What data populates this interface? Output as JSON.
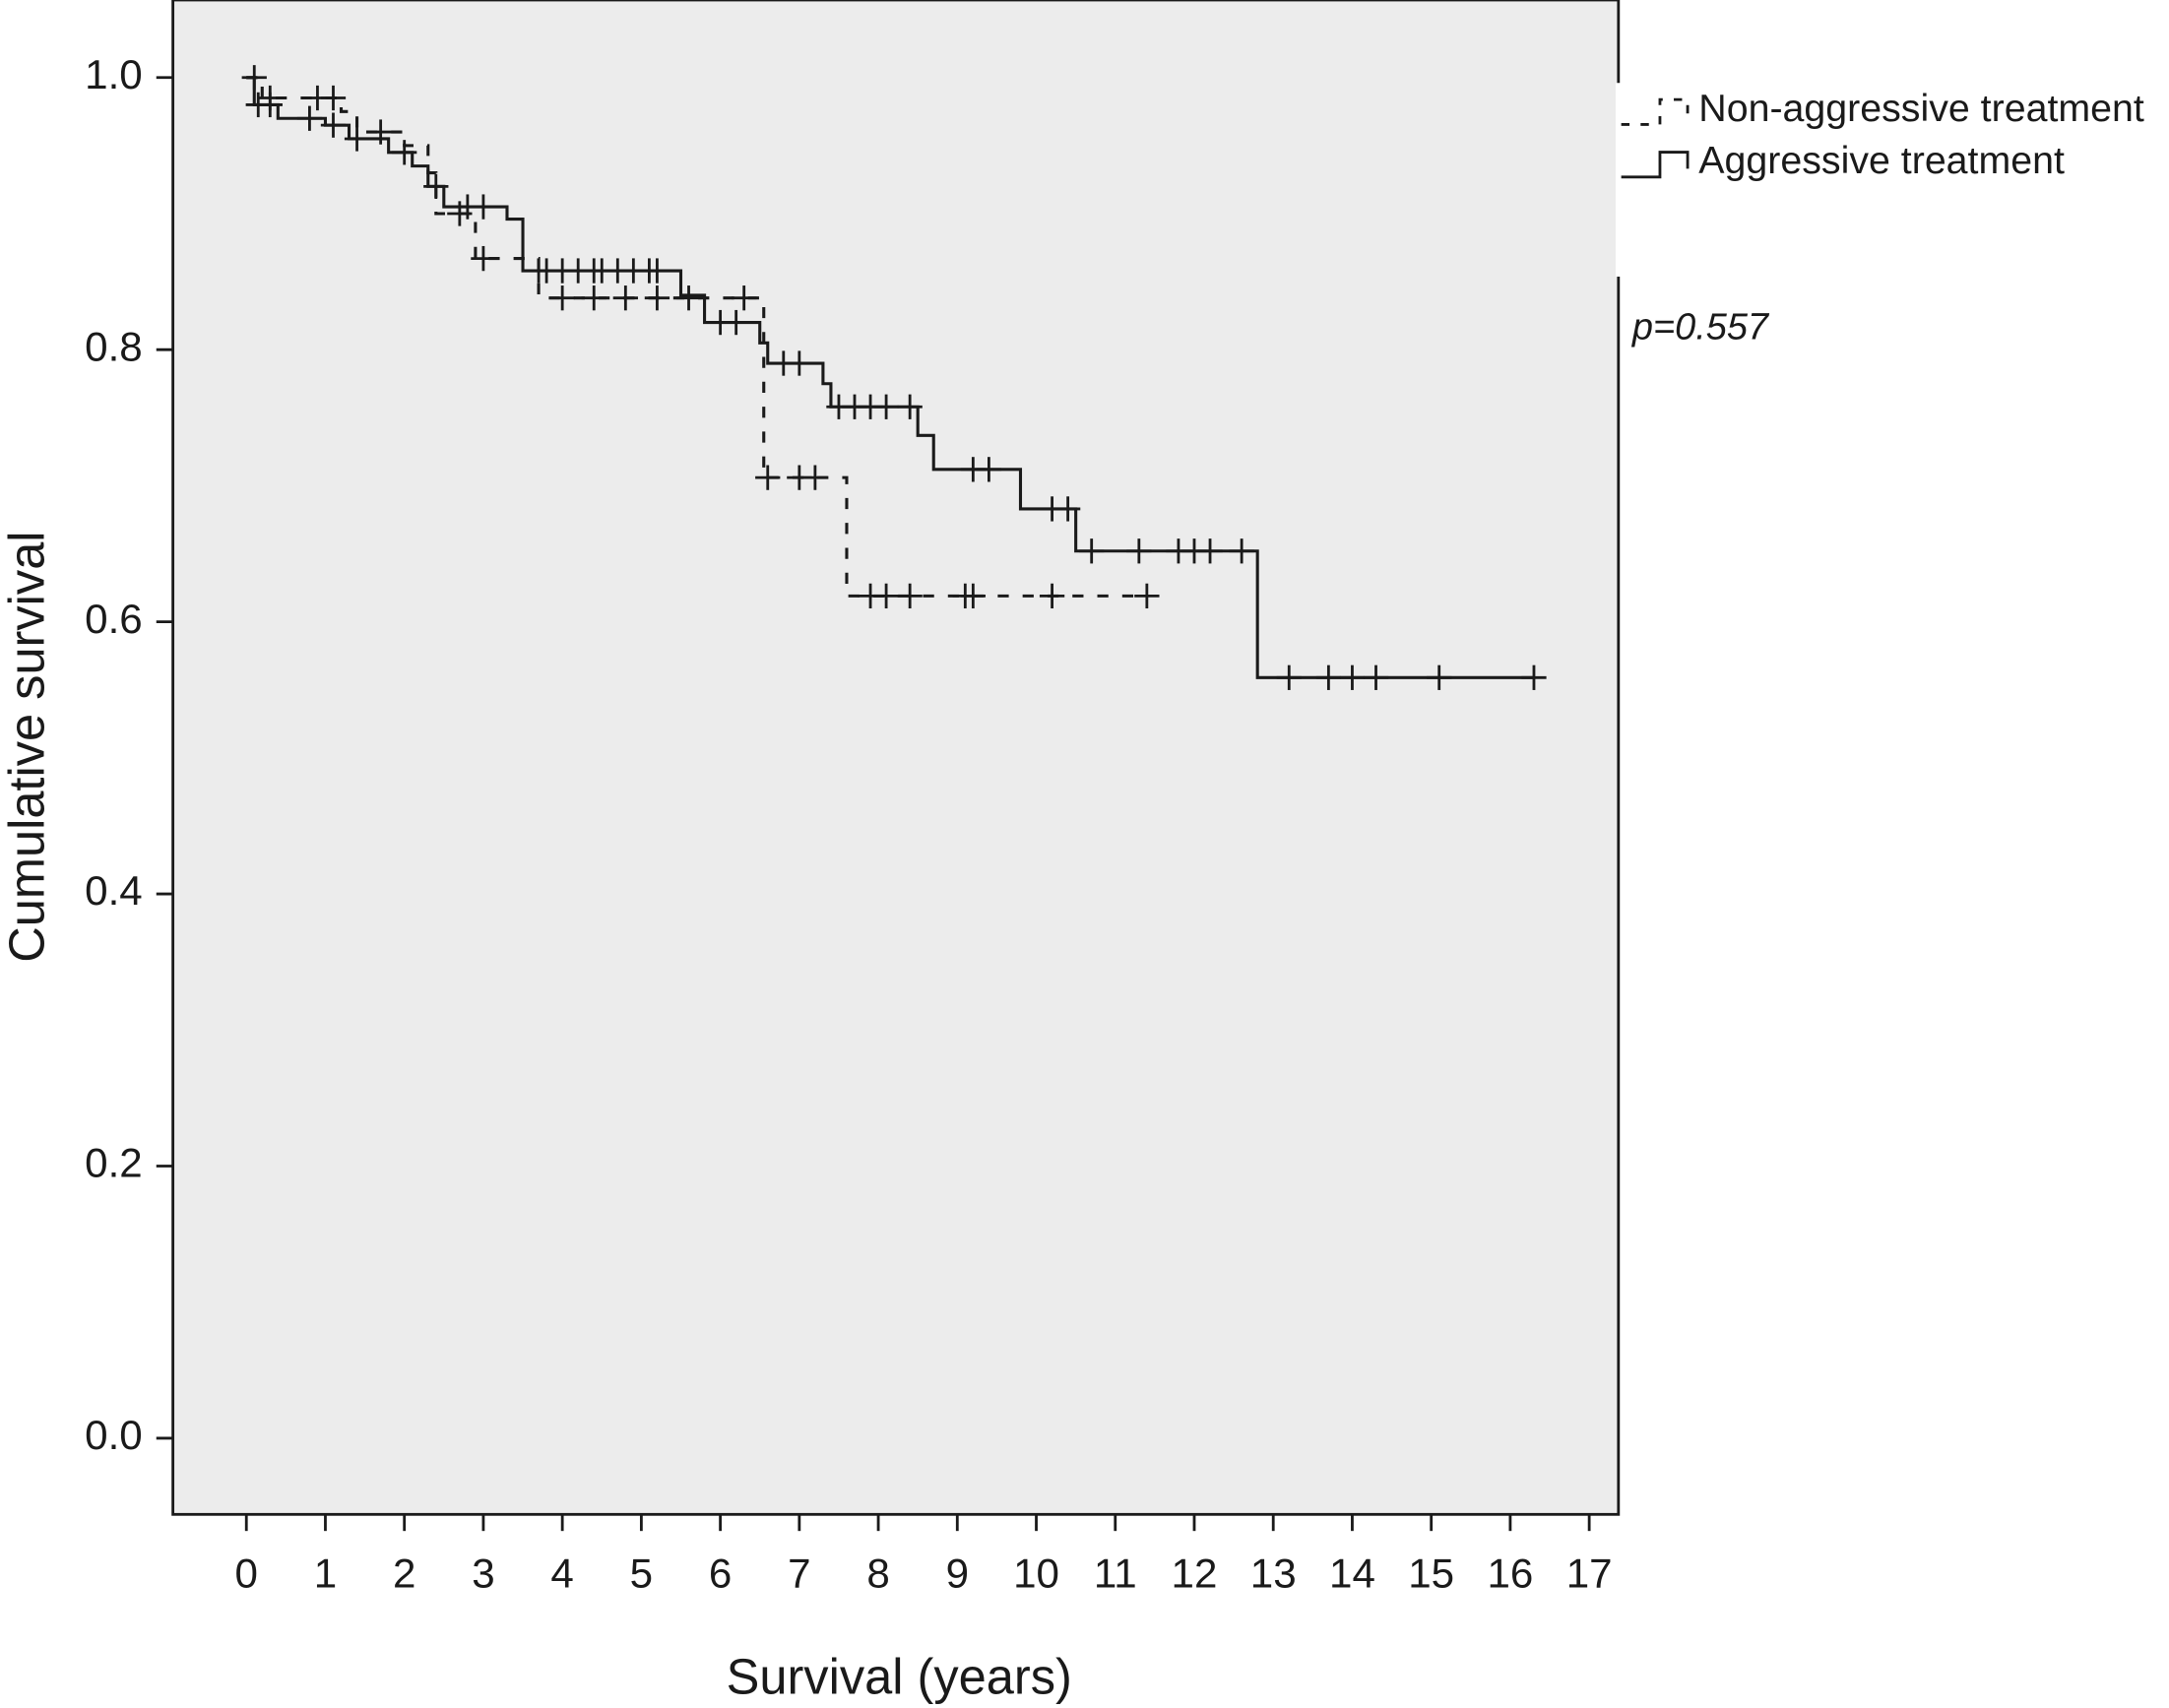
{
  "chart_data": {
    "type": "kaplan-meier",
    "x_label": "Survival (years)",
    "y_label": "Cumulative survival",
    "annotation": "p=0.557",
    "xlim": [
      -0.93,
      17.37
    ],
    "ylim": [
      -0.056,
      1.057
    ],
    "xticks": [
      0,
      1,
      2,
      3,
      4,
      5,
      6,
      7,
      8,
      9,
      10,
      11,
      12,
      13,
      14,
      15,
      16,
      17
    ],
    "yticks": [
      {
        "value": 0,
        "label": "0.0"
      },
      {
        "value": 0.2,
        "label": "0.2"
      },
      {
        "value": 0.4,
        "label": "0.4"
      },
      {
        "value": 0.6,
        "label": "0.6"
      },
      {
        "value": 0.8,
        "label": "0.8"
      },
      {
        "value": 1,
        "label": "1.0"
      }
    ],
    "legend": "right",
    "series": [
      {
        "name": "Non-aggressive treatment",
        "color": "#1a1a1a",
        "dashed": true,
        "x": [
          0,
          0.2,
          1.2,
          1.4,
          2.0,
          2.3,
          2.4,
          2.9,
          3.7,
          6.55,
          7.6,
          11.4
        ],
        "values": [
          1.0,
          0.985,
          0.975,
          0.96,
          0.95,
          0.93,
          0.9,
          0.867,
          0.838,
          0.706,
          0.619,
          0.619
        ],
        "censored": [
          0.1,
          0.3,
          0.9,
          1.1,
          1.7,
          2.7,
          3.0,
          4.0,
          4.4,
          4.8,
          5.2,
          5.6,
          6.3,
          6.6,
          7.0,
          7.2,
          7.9,
          8.1,
          8.4,
          9.1,
          9.2,
          10.2,
          11.4
        ]
      },
      {
        "name": "Aggressive treatment",
        "color": "#1a1a1a",
        "dashed": false,
        "x": [
          0,
          0.1,
          0.4,
          1.0,
          1.3,
          1.8,
          2.1,
          2.3,
          2.5,
          3.3,
          3.5,
          5.5,
          5.8,
          6.5,
          6.6,
          7.3,
          7.4,
          8.5,
          8.7,
          9.8,
          10.5,
          12.8,
          16.3
        ],
        "values": [
          1.0,
          0.98,
          0.97,
          0.965,
          0.955,
          0.945,
          0.935,
          0.92,
          0.905,
          0.896,
          0.858,
          0.84,
          0.82,
          0.805,
          0.79,
          0.775,
          0.758,
          0.737,
          0.712,
          0.683,
          0.652,
          0.559,
          0.559
        ],
        "censored": [
          0.15,
          0.3,
          0.8,
          1.1,
          1.4,
          2.0,
          2.4,
          2.8,
          3.0,
          3.7,
          3.8,
          4.0,
          4.2,
          4.4,
          4.5,
          4.7,
          4.9,
          5.1,
          5.2,
          6.0,
          6.2,
          6.8,
          7.0,
          7.5,
          7.7,
          7.9,
          8.1,
          8.4,
          9.2,
          9.4,
          10.2,
          10.4,
          10.7,
          11.3,
          11.8,
          12.0,
          12.2,
          12.6,
          13.2,
          13.7,
          14.0,
          14.3,
          15.1,
          16.3
        ]
      }
    ]
  }
}
